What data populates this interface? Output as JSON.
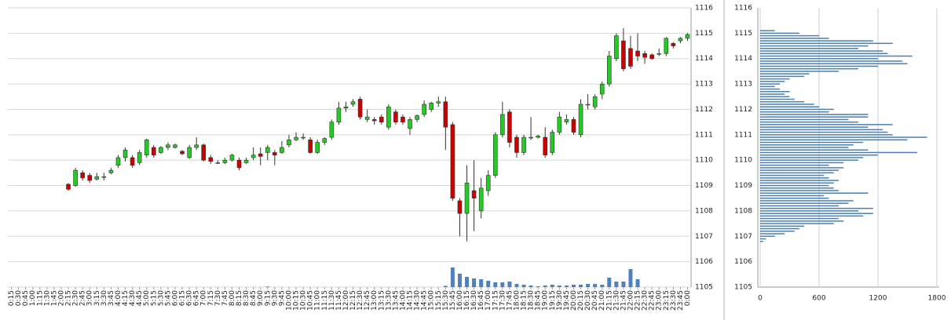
{
  "chart_data": [
    {
      "type": "candlestick",
      "x": [
        "0:15",
        "0:30",
        "0:45",
        "1:00",
        "1:15",
        "1:30",
        "1:45",
        "2:00",
        "2:15",
        "2:30",
        "2:45",
        "3:00",
        "3:15",
        "3:30",
        "3:45",
        "4:00",
        "4:15",
        "4:30",
        "4:45",
        "5:00",
        "5:15",
        "5:30",
        "5:45",
        "6:00",
        "6:15",
        "6:30",
        "6:45",
        "7:00",
        "7:15",
        "7:30",
        "7:45",
        "8:00",
        "8:15",
        "8:30",
        "8:45",
        "9:00",
        "9:15",
        "9:30",
        "9:45",
        "10:00",
        "10:15",
        "10:30",
        "10:45",
        "11:00",
        "11:15",
        "11:30",
        "11:45",
        "12:00",
        "12:15",
        "12:30",
        "12:45",
        "13:00",
        "13:15",
        "13:30",
        "13:45",
        "14:00",
        "14:15",
        "14:30",
        "14:45",
        "15:00",
        "15:15",
        "15:30",
        "15:45",
        "16:00",
        "16:15",
        "16:30",
        "16:45",
        "17:00",
        "17:15",
        "17:30",
        "17:45",
        "18:00",
        "18:15",
        "18:30",
        "18:45",
        "19:00",
        "19:15",
        "19:30",
        "19:45",
        "20:00",
        "20:15",
        "20:30",
        "20:45",
        "21:00",
        "21:15",
        "21:30",
        "21:45",
        "22:00",
        "22:15",
        "22:30",
        "22:45",
        "23:00",
        "23:15",
        "23:30",
        "23:45",
        "0:00"
      ],
      "open": [
        null,
        null,
        null,
        null,
        null,
        null,
        null,
        null,
        1109.05,
        1109.0,
        1109.5,
        1109.4,
        1109.25,
        1109.35,
        1109.5,
        1109.8,
        1110.1,
        1110.1,
        1109.9,
        1110.2,
        1110.5,
        1110.3,
        1110.5,
        1110.5,
        1110.35,
        1110.1,
        1110.5,
        1110.6,
        1110.1,
        1109.9,
        1109.9,
        1110.0,
        1110.0,
        1109.9,
        1110.1,
        1110.25,
        1110.3,
        1110.3,
        1110.3,
        1110.6,
        1110.8,
        1110.9,
        1110.8,
        1110.3,
        1110.7,
        1110.9,
        1111.5,
        1112.05,
        1112.2,
        1112.4,
        1111.6,
        1111.6,
        1111.7,
        1111.3,
        1111.9,
        1111.7,
        1111.25,
        1111.6,
        1111.8,
        1112.0,
        1112.25,
        1112.3,
        1111.4,
        1108.4,
        1107.9,
        1108.8,
        1108.0,
        1108.8,
        1109.4,
        1111.0,
        1111.9,
        1110.9,
        1110.3,
        1110.9,
        1110.9,
        1110.9,
        1110.3,
        1111.1,
        1111.5,
        1111.6,
        1111.0,
        1112.2,
        1112.1,
        1112.6,
        1113.0,
        1114.0,
        1114.7,
        1114.4,
        1114.3,
        1114.2,
        1114.15,
        1114.2,
        1114.2,
        1114.6,
        1114.7,
        1114.8
      ],
      "high": [
        null,
        null,
        null,
        null,
        null,
        null,
        null,
        null,
        1109.1,
        1109.7,
        1109.6,
        1109.5,
        1109.5,
        1109.5,
        1109.7,
        1110.2,
        1110.5,
        1110.2,
        1110.4,
        1110.85,
        1110.6,
        1110.55,
        1110.7,
        1110.65,
        1110.4,
        1110.6,
        1110.9,
        1110.65,
        1110.2,
        1110.0,
        1110.1,
        1110.25,
        1110.1,
        1110.1,
        1110.5,
        1110.5,
        1110.6,
        1110.4,
        1110.75,
        1111.0,
        1111.1,
        1111.05,
        1110.9,
        1110.8,
        1110.9,
        1111.6,
        1112.3,
        1112.3,
        1112.4,
        1112.5,
        1112.0,
        1111.7,
        1111.8,
        1112.2,
        1112.0,
        1111.8,
        1111.7,
        1111.8,
        1112.35,
        1112.3,
        1112.5,
        1112.5,
        1111.5,
        1108.5,
        1109.8,
        1110.0,
        1109.3,
        1109.6,
        1111.1,
        1112.3,
        1112.0,
        1111.0,
        1111.0,
        1111.7,
        1111.0,
        1111.3,
        1111.2,
        1111.9,
        1111.8,
        1111.7,
        1112.4,
        1112.6,
        1112.6,
        1113.1,
        1114.3,
        1115.0,
        1115.2,
        1114.9,
        1115.0,
        1114.3,
        1114.2,
        1114.4,
        1114.85,
        1114.65,
        1114.85,
        1115.0
      ],
      "low": [
        null,
        null,
        null,
        null,
        null,
        null,
        null,
        null,
        1108.8,
        1108.95,
        1109.2,
        1109.1,
        1109.2,
        1109.2,
        1109.45,
        1109.7,
        1109.95,
        1109.7,
        1109.8,
        1110.1,
        1110.1,
        1110.25,
        1110.4,
        1110.45,
        1110.2,
        1110.05,
        1110.4,
        1109.95,
        1109.85,
        1109.85,
        1109.85,
        1109.95,
        1109.6,
        1109.85,
        1110.0,
        1109.8,
        1110.0,
        1109.8,
        1110.25,
        1110.5,
        1110.75,
        1110.8,
        1110.25,
        1110.25,
        1110.6,
        1110.8,
        1111.4,
        1111.9,
        1112.1,
        1111.6,
        1111.5,
        1111.4,
        1111.4,
        1111.2,
        1111.4,
        1111.4,
        1111.0,
        1111.5,
        1111.7,
        1111.9,
        1112.1,
        1110.4,
        1108.4,
        1107.0,
        1106.8,
        1107.2,
        1107.7,
        1108.6,
        1109.3,
        1110.9,
        1110.5,
        1110.1,
        1110.2,
        1110.8,
        1110.85,
        1110.1,
        1110.2,
        1111.0,
        1111.4,
        1111.0,
        1110.9,
        1112.0,
        1112.0,
        1112.4,
        1112.9,
        1113.9,
        1113.5,
        1113.6,
        1113.9,
        1113.8,
        1113.95,
        1114.1,
        1114.1,
        1114.4,
        1114.6,
        1114.7
      ],
      "close": [
        null,
        null,
        null,
        null,
        null,
        null,
        null,
        null,
        1108.85,
        1109.6,
        1109.3,
        1109.2,
        1109.35,
        1109.35,
        1109.6,
        1110.1,
        1110.4,
        1109.8,
        1110.3,
        1110.8,
        1110.2,
        1110.5,
        1110.6,
        1110.6,
        1110.25,
        1110.5,
        1110.6,
        1110.0,
        1109.95,
        1109.9,
        1110.0,
        1110.2,
        1109.7,
        1110.0,
        1110.2,
        1110.15,
        1110.5,
        1110.2,
        1110.5,
        1110.8,
        1110.9,
        1110.9,
        1110.3,
        1110.7,
        1110.85,
        1111.5,
        1112.05,
        1112.1,
        1112.3,
        1111.7,
        1111.7,
        1111.55,
        1111.5,
        1112.1,
        1111.5,
        1111.5,
        1111.6,
        1111.75,
        1112.2,
        1112.25,
        1112.3,
        1111.3,
        1108.5,
        1107.9,
        1109.1,
        1108.5,
        1108.9,
        1109.4,
        1111.0,
        1111.8,
        1110.7,
        1110.3,
        1110.9,
        1110.9,
        1110.95,
        1110.2,
        1111.1,
        1111.7,
        1111.6,
        1111.1,
        1112.2,
        1112.2,
        1112.5,
        1113.0,
        1114.1,
        1114.9,
        1113.6,
        1113.7,
        1114.1,
        1114.05,
        1114.0,
        1114.2,
        1114.8,
        1114.5,
        1114.8,
        1114.95
      ],
      "volume": [
        null,
        null,
        null,
        null,
        null,
        null,
        null,
        null,
        0,
        0,
        0,
        0,
        0,
        0,
        0,
        0,
        0,
        0,
        0,
        0,
        0,
        0,
        0,
        0,
        0,
        0,
        0,
        0,
        0,
        0,
        0,
        0,
        0,
        0,
        0,
        0,
        30,
        0,
        0,
        0,
        0,
        0,
        0,
        0,
        0,
        0,
        0,
        0,
        0,
        0,
        0,
        0,
        0,
        0,
        0,
        0,
        0,
        0,
        0,
        0,
        0,
        60,
        1000,
        680,
        520,
        440,
        400,
        320,
        240,
        240,
        280,
        160,
        120,
        80,
        40,
        80,
        120,
        80,
        80,
        120,
        120,
        160,
        160,
        120,
        480,
        280,
        280,
        920,
        400,
        0,
        0,
        0,
        0,
        0,
        0,
        0
      ],
      "up_color": "#22cc22",
      "down_color": "#cc0000",
      "volume_color": "#4f81bd",
      "ylim": [
        1105,
        1116
      ],
      "yticks": [
        1105,
        1106,
        1107,
        1108,
        1109,
        1110,
        1111,
        1112,
        1113,
        1114,
        1115,
        1116
      ],
      "grid": true
    },
    {
      "type": "barh",
      "y": [
        1106.8,
        1106.9,
        1107.0,
        1107.1,
        1107.2,
        1107.3,
        1107.4,
        1107.5,
        1107.6,
        1107.7,
        1107.8,
        1107.9,
        1108.0,
        1108.1,
        1108.2,
        1108.3,
        1108.4,
        1108.5,
        1108.6,
        1108.7,
        1108.8,
        1108.9,
        1109.0,
        1109.1,
        1109.2,
        1109.3,
        1109.4,
        1109.5,
        1109.6,
        1109.7,
        1109.8,
        1109.9,
        1110.0,
        1110.1,
        1110.2,
        1110.3,
        1110.4,
        1110.5,
        1110.6,
        1110.7,
        1110.8,
        1110.9,
        1111.0,
        1111.1,
        1111.2,
        1111.3,
        1111.4,
        1111.5,
        1111.6,
        1111.7,
        1111.8,
        1111.9,
        1112.0,
        1112.1,
        1112.2,
        1112.3,
        1112.4,
        1112.5,
        1112.6,
        1112.7,
        1112.8,
        1112.9,
        1113.0,
        1113.1,
        1113.2,
        1113.3,
        1113.4,
        1113.5,
        1113.6,
        1113.7,
        1113.8,
        1113.9,
        1114.0,
        1114.1,
        1114.2,
        1114.3,
        1114.4,
        1114.5,
        1114.6,
        1114.7,
        1114.8,
        1114.9,
        1115.0,
        1115.1
      ],
      "values": [
        30,
        60,
        150,
        250,
        350,
        400,
        450,
        750,
        850,
        800,
        1050,
        1150,
        1000,
        1150,
        800,
        900,
        950,
        700,
        650,
        1100,
        800,
        750,
        700,
        750,
        800,
        700,
        650,
        750,
        800,
        850,
        700,
        850,
        1000,
        1050,
        1200,
        1600,
        1100,
        900,
        950,
        1050,
        1500,
        1700,
        1350,
        1300,
        1250,
        1100,
        1350,
        1000,
        900,
        1100,
        1100,
        700,
        750,
        600,
        550,
        450,
        350,
        300,
        250,
        300,
        200,
        150,
        200,
        250,
        300,
        450,
        500,
        800,
        1000,
        1200,
        1500,
        1450,
        1200,
        1550,
        1300,
        1250,
        1000,
        1100,
        1350,
        1150,
        700,
        600,
        400,
        150
      ],
      "color": "#4a7fb0",
      "xlim": [
        0,
        1800
      ],
      "xticks": [
        0,
        600,
        1200,
        1800
      ],
      "ylim": [
        1105,
        1116
      ],
      "yticks": [
        1105,
        1106,
        1107,
        1108,
        1109,
        1110,
        1111,
        1112,
        1113,
        1114,
        1115,
        1116
      ],
      "grid": true
    }
  ]
}
